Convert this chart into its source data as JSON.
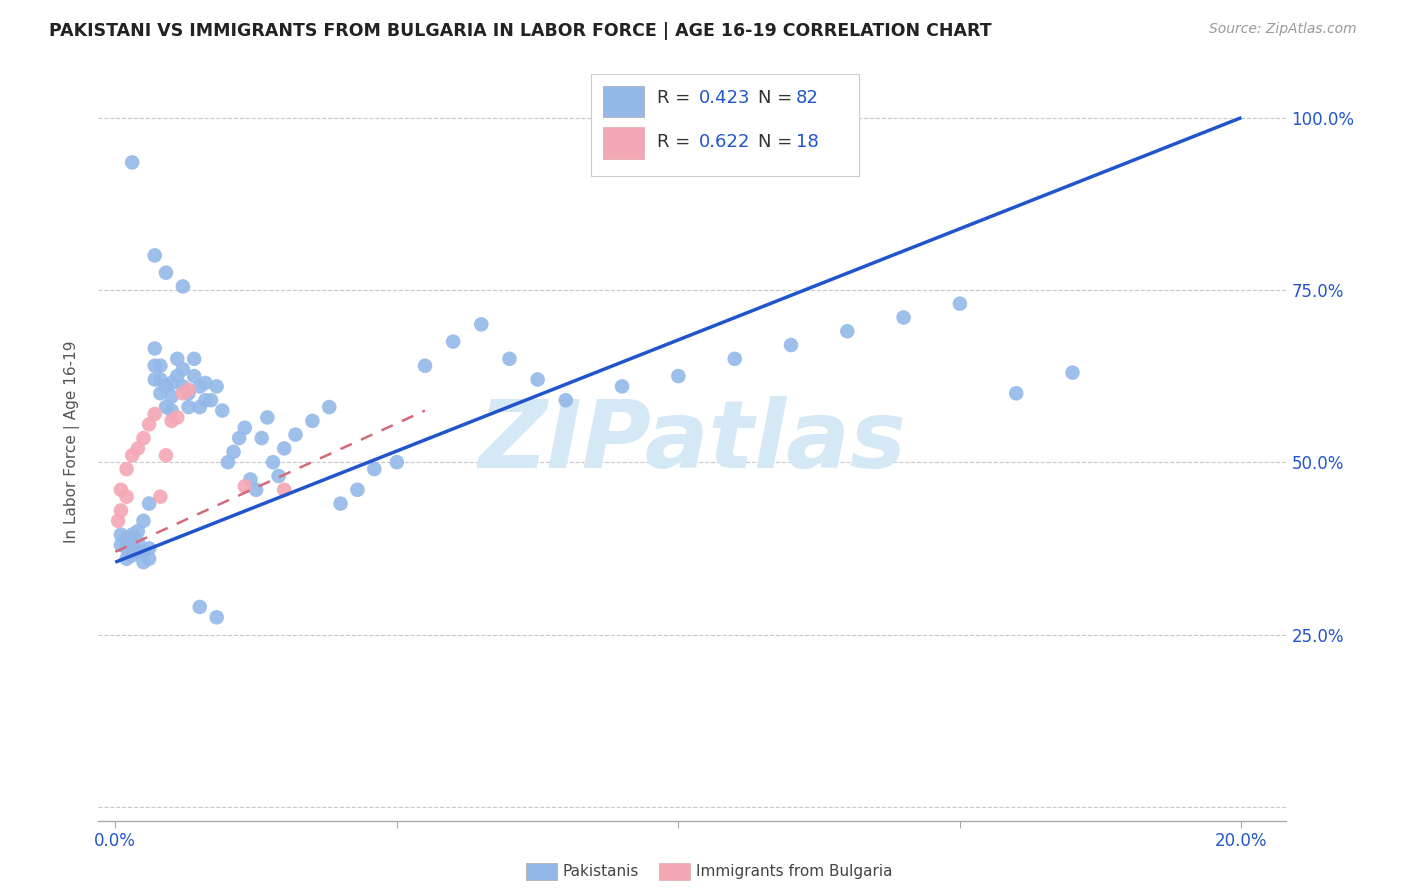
{
  "title": "PAKISTANI VS IMMIGRANTS FROM BULGARIA IN LABOR FORCE | AGE 16-19 CORRELATION CHART",
  "source": "Source: ZipAtlas.com",
  "ylabel": "In Labor Force | Age 16-19",
  "x_tick_positions": [
    0.0,
    0.05,
    0.1,
    0.15,
    0.2
  ],
  "x_tick_labels": [
    "0.0%",
    "",
    "",
    "",
    "20.0%"
  ],
  "y_tick_positions": [
    0.0,
    0.25,
    0.5,
    0.75,
    1.0
  ],
  "y_tick_labels": [
    "",
    "25.0%",
    "50.0%",
    "75.0%",
    "100.0%"
  ],
  "blue_scatter_color": "#93b8e8",
  "pink_scatter_color": "#f4a7b4",
  "line_blue_color": "#2255cc",
  "line_pink_color": "#d4697a",
  "legend_text_color": "#2255cc",
  "legend_label_color": "#333333",
  "watermark_text": "ZIPatlas",
  "watermark_color": "#d5e8f5",
  "legend_R_blue": "R = 0.423",
  "legend_N_blue": "N = 82",
  "legend_R_pink": "R = 0.622",
  "legend_N_pink": "N = 18",
  "blue_line_x0": 0.0,
  "blue_line_y0": 0.355,
  "blue_line_x1": 0.2,
  "blue_line_y1": 1.0,
  "pink_line_x0": 0.0,
  "pink_line_y0": 0.37,
  "pink_line_x1": 0.055,
  "pink_line_y1": 0.575,
  "xlim_min": -0.003,
  "xlim_max": 0.208,
  "ylim_min": -0.02,
  "ylim_max": 1.08
}
